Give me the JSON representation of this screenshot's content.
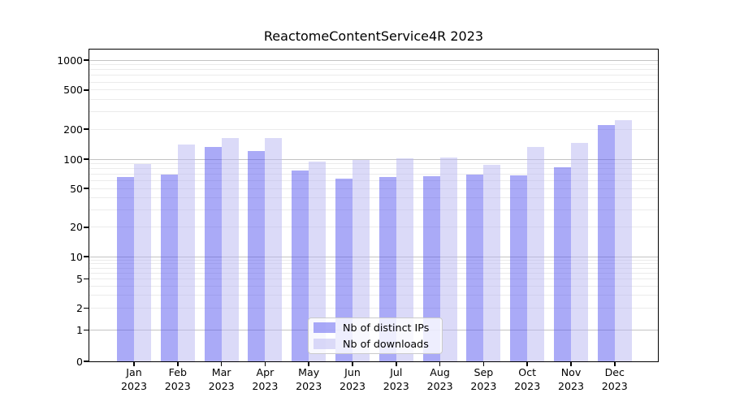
{
  "title": "ReactomeContentService4R 2023",
  "legend": {
    "items": [
      {
        "label": "Nb of distinct IPs",
        "series_key": "ips"
      },
      {
        "label": "Nb of downloads",
        "series_key": "downloads"
      }
    ]
  },
  "colors": {
    "ips_bar": "rgba(85,85,240,0.5)",
    "downloads_bar": "rgba(183,182,242,0.5)",
    "grid_major": "#c3c3c3",
    "grid_minor": "#ebebeb",
    "axis": "#000000",
    "legend_border": "#cbcbcb"
  },
  "chart_data": {
    "type": "bar",
    "title": "ReactomeContentService4R 2023",
    "yscale": "symlog",
    "grid": true,
    "legend_position": "bottom-center",
    "categories": [
      "Jan",
      "Feb",
      "Mar",
      "Apr",
      "May",
      "Jun",
      "Jul",
      "Aug",
      "Sep",
      "Oct",
      "Nov",
      "Dec"
    ],
    "year": "2023",
    "series": [
      {
        "name": "Nb of distinct IPs",
        "values": [
          66,
          69,
          134,
          121,
          76,
          63,
          66,
          67,
          70,
          68,
          83,
          222
        ]
      },
      {
        "name": "Nb of downloads",
        "values": [
          90,
          141,
          163,
          162,
          94,
          99,
          102,
          103,
          87,
          133,
          146,
          248
        ]
      }
    ],
    "yticks": [
      0,
      1,
      2,
      5,
      10,
      20,
      50,
      100,
      200,
      500,
      1000
    ],
    "ylim": [
      0,
      1400
    ],
    "xlabel": "",
    "ylabel": ""
  }
}
